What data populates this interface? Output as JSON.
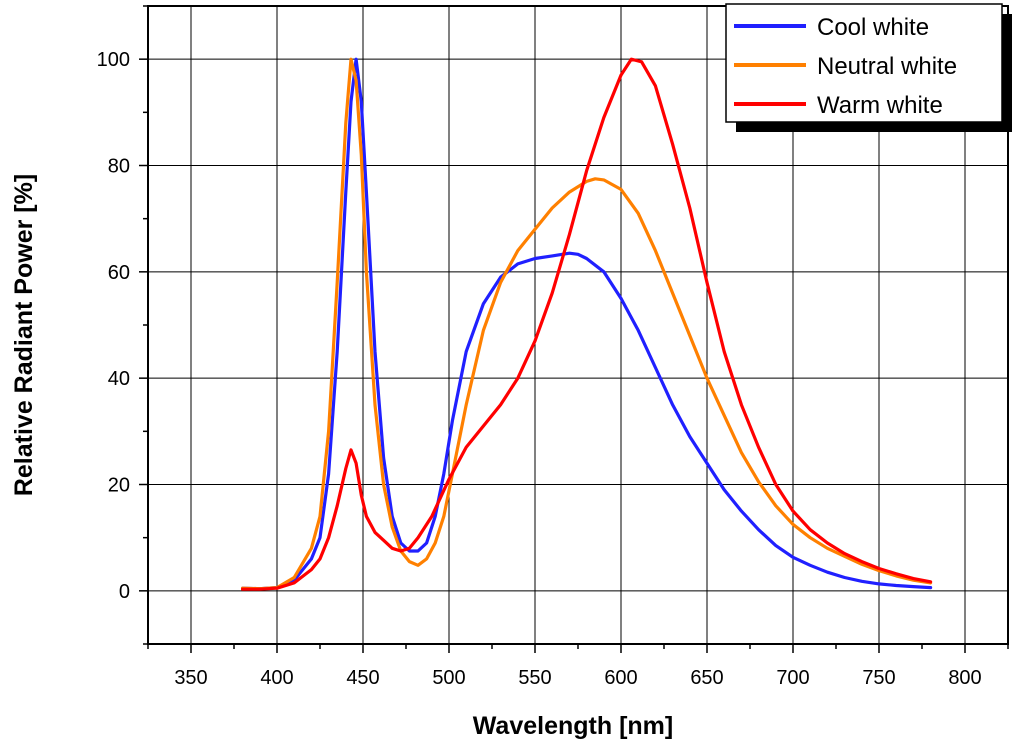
{
  "chart_data": {
    "type": "line",
    "title": "",
    "xlabel": "Wavelength [nm]",
    "ylabel": "Relative Radiant Power [%]",
    "xlim": [
      325,
      825
    ],
    "ylim": [
      -10,
      110
    ],
    "x_ticks": [
      350,
      400,
      450,
      500,
      550,
      600,
      650,
      700,
      750,
      800
    ],
    "y_ticks": [
      0,
      20,
      40,
      60,
      80,
      100
    ],
    "grid": true,
    "legend_position": "top-right",
    "series": [
      {
        "name": "Cool white",
        "color": "#2020ff",
        "points": [
          [
            380,
            0.5
          ],
          [
            390,
            0.4
          ],
          [
            400,
            0.6
          ],
          [
            410,
            2
          ],
          [
            420,
            6
          ],
          [
            425,
            10
          ],
          [
            430,
            22
          ],
          [
            435,
            45
          ],
          [
            440,
            75
          ],
          [
            443,
            92
          ],
          [
            446,
            100
          ],
          [
            449,
            92
          ],
          [
            452,
            75
          ],
          [
            457,
            45
          ],
          [
            462,
            25
          ],
          [
            467,
            14
          ],
          [
            472,
            9
          ],
          [
            477,
            7.5
          ],
          [
            482,
            7.5
          ],
          [
            487,
            9
          ],
          [
            492,
            14
          ],
          [
            497,
            22
          ],
          [
            502,
            32
          ],
          [
            510,
            45
          ],
          [
            520,
            54
          ],
          [
            530,
            59
          ],
          [
            540,
            61.5
          ],
          [
            550,
            62.5
          ],
          [
            560,
            63
          ],
          [
            570,
            63.5
          ],
          [
            575,
            63.3
          ],
          [
            580,
            62.5
          ],
          [
            590,
            60
          ],
          [
            600,
            55
          ],
          [
            610,
            49
          ],
          [
            620,
            42
          ],
          [
            630,
            35
          ],
          [
            640,
            29
          ],
          [
            650,
            24
          ],
          [
            660,
            19
          ],
          [
            670,
            15
          ],
          [
            680,
            11.5
          ],
          [
            690,
            8.5
          ],
          [
            700,
            6.3
          ],
          [
            710,
            4.8
          ],
          [
            720,
            3.5
          ],
          [
            730,
            2.5
          ],
          [
            740,
            1.8
          ],
          [
            750,
            1.3
          ],
          [
            760,
            1
          ],
          [
            770,
            0.8
          ],
          [
            780,
            0.6
          ]
        ]
      },
      {
        "name": "Neutral white",
        "color": "#ff8000",
        "points": [
          [
            380,
            0.5
          ],
          [
            390,
            0.4
          ],
          [
            400,
            0.6
          ],
          [
            410,
            2.5
          ],
          [
            420,
            8
          ],
          [
            425,
            14
          ],
          [
            430,
            30
          ],
          [
            435,
            58
          ],
          [
            440,
            88
          ],
          [
            443,
            100
          ],
          [
            446,
            96
          ],
          [
            449,
            82
          ],
          [
            452,
            60
          ],
          [
            457,
            35
          ],
          [
            462,
            20
          ],
          [
            467,
            12
          ],
          [
            472,
            7.5
          ],
          [
            477,
            5.5
          ],
          [
            482,
            4.8
          ],
          [
            487,
            6
          ],
          [
            492,
            9
          ],
          [
            497,
            14
          ],
          [
            502,
            22
          ],
          [
            510,
            35
          ],
          [
            520,
            49
          ],
          [
            530,
            58
          ],
          [
            540,
            64
          ],
          [
            550,
            68
          ],
          [
            560,
            72
          ],
          [
            570,
            75
          ],
          [
            580,
            77
          ],
          [
            585,
            77.5
          ],
          [
            590,
            77.3
          ],
          [
            600,
            75.5
          ],
          [
            610,
            71
          ],
          [
            620,
            64
          ],
          [
            630,
            56
          ],
          [
            640,
            48
          ],
          [
            650,
            40
          ],
          [
            660,
            33
          ],
          [
            670,
            26
          ],
          [
            680,
            20.5
          ],
          [
            690,
            16
          ],
          [
            700,
            12.5
          ],
          [
            710,
            10
          ],
          [
            720,
            8
          ],
          [
            730,
            6.5
          ],
          [
            740,
            5
          ],
          [
            750,
            3.8
          ],
          [
            760,
            2.8
          ],
          [
            770,
            2
          ],
          [
            780,
            1.5
          ]
        ]
      },
      {
        "name": "Warm white",
        "color": "#ff0000",
        "points": [
          [
            380,
            0.3
          ],
          [
            390,
            0.3
          ],
          [
            400,
            0.5
          ],
          [
            410,
            1.5
          ],
          [
            420,
            4
          ],
          [
            425,
            6
          ],
          [
            430,
            10
          ],
          [
            435,
            16
          ],
          [
            440,
            23
          ],
          [
            443,
            26.5
          ],
          [
            446,
            24
          ],
          [
            449,
            18
          ],
          [
            452,
            14
          ],
          [
            457,
            11
          ],
          [
            462,
            9.5
          ],
          [
            467,
            8
          ],
          [
            472,
            7.5
          ],
          [
            477,
            8
          ],
          [
            482,
            10
          ],
          [
            490,
            14
          ],
          [
            500,
            21
          ],
          [
            510,
            27
          ],
          [
            520,
            31
          ],
          [
            530,
            35
          ],
          [
            540,
            40
          ],
          [
            550,
            47
          ],
          [
            560,
            56
          ],
          [
            570,
            67
          ],
          [
            580,
            79
          ],
          [
            590,
            89
          ],
          [
            600,
            97
          ],
          [
            606,
            100
          ],
          [
            612,
            99.5
          ],
          [
            620,
            95
          ],
          [
            630,
            84
          ],
          [
            640,
            72
          ],
          [
            650,
            58
          ],
          [
            660,
            45
          ],
          [
            670,
            35
          ],
          [
            680,
            27
          ],
          [
            690,
            20
          ],
          [
            700,
            15
          ],
          [
            710,
            11.5
          ],
          [
            720,
            9
          ],
          [
            730,
            7
          ],
          [
            740,
            5.5
          ],
          [
            750,
            4.2
          ],
          [
            760,
            3.2
          ],
          [
            770,
            2.3
          ],
          [
            780,
            1.7
          ]
        ]
      }
    ]
  }
}
